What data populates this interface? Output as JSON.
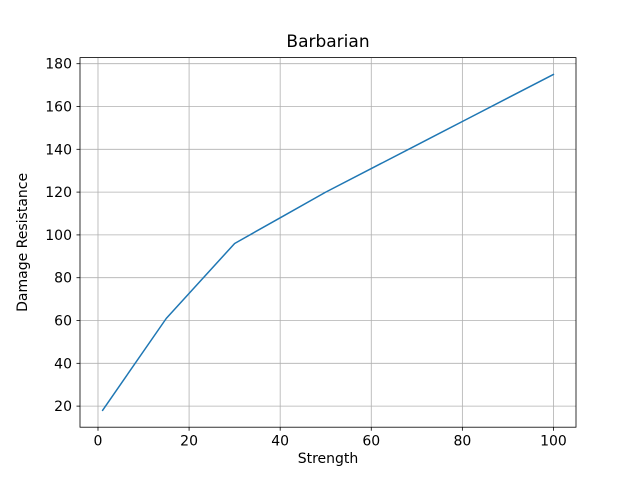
{
  "chart_data": {
    "type": "line",
    "title": "Barbarian",
    "xlabel": "Strength",
    "ylabel": "Damage Resistance",
    "series": [
      {
        "x": [
          1,
          15,
          30,
          40,
          50,
          60,
          70,
          80,
          90,
          100
        ],
        "y": [
          18,
          61,
          96,
          108,
          120,
          131,
          142,
          153,
          164,
          175
        ],
        "color": "#1f77b4",
        "linewidth": 1.5
      }
    ],
    "xticks": [
      0,
      20,
      40,
      60,
      80,
      100
    ],
    "yticks": [
      20,
      40,
      60,
      80,
      100,
      120,
      140,
      160,
      180
    ],
    "xlim": [
      -3.95,
      104.95
    ],
    "ylim": [
      10.15,
      182.85
    ],
    "grid": true,
    "grid_color": "#b0b0b0",
    "axis_color": "#000000",
    "background": "#ffffff",
    "legend_position": "none"
  }
}
